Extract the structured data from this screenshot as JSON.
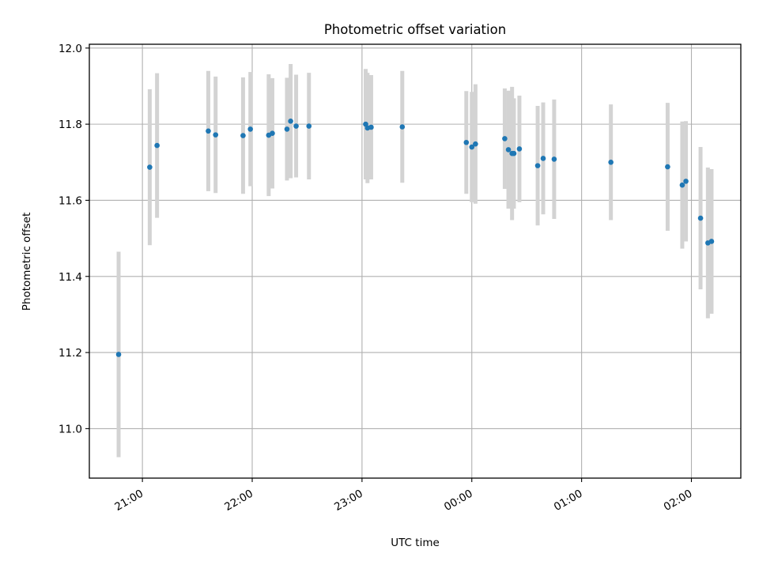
{
  "chart_data": {
    "type": "scatter",
    "title": "Photometric offset variation",
    "xlabel": "UTC time",
    "ylabel": "Photometric offset",
    "x_ticks": [
      "21:00",
      "22:00",
      "23:00",
      "00:00",
      "01:00",
      "02:00"
    ],
    "y_ticks": [
      "11.0",
      "11.2",
      "11.4",
      "11.6",
      "11.8",
      "12.0"
    ],
    "grid": true,
    "ylim": [
      10.87,
      12.01
    ],
    "xlim": [
      "20:31",
      "02:27"
    ],
    "colors": {
      "point": "#1f77b4",
      "errorbar": "#d3d3d3",
      "grid": "#b0b0b0"
    },
    "series": [
      {
        "points": [
          {
            "t": "20:47",
            "y": 11.195,
            "err": 0.27
          },
          {
            "t": "21:04",
            "y": 11.687,
            "err": 0.205
          },
          {
            "t": "21:08",
            "y": 11.744,
            "err": 0.19
          },
          {
            "t": "21:36",
            "y": 11.782,
            "err": 0.158
          },
          {
            "t": "21:40",
            "y": 11.772,
            "err": 0.153
          },
          {
            "t": "21:55",
            "y": 11.77,
            "err": 0.153
          },
          {
            "t": "21:59",
            "y": 11.787,
            "err": 0.15
          },
          {
            "t": "22:09",
            "y": 11.771,
            "err": 0.16
          },
          {
            "t": "22:11",
            "y": 11.776,
            "err": 0.145
          },
          {
            "t": "22:19",
            "y": 11.787,
            "err": 0.135
          },
          {
            "t": "22:21",
            "y": 11.808,
            "err": 0.15
          },
          {
            "t": "22:24",
            "y": 11.795,
            "err": 0.135
          },
          {
            "t": "22:31",
            "y": 11.795,
            "err": 0.14
          },
          {
            "t": "23:02",
            "y": 11.8,
            "err": 0.145
          },
          {
            "t": "23:03",
            "y": 11.79,
            "err": 0.145
          },
          {
            "t": "23:05",
            "y": 11.792,
            "err": 0.137
          },
          {
            "t": "23:22",
            "y": 11.793,
            "err": 0.147
          },
          {
            "t": "23:57",
            "y": 11.752,
            "err": 0.135
          },
          {
            "t": "00:00",
            "y": 11.74,
            "err": 0.145
          },
          {
            "t": "00:02",
            "y": 11.748,
            "err": 0.157
          },
          {
            "t": "00:18",
            "y": 11.762,
            "err": 0.132
          },
          {
            "t": "00:20",
            "y": 11.733,
            "err": 0.155
          },
          {
            "t": "00:22",
            "y": 11.723,
            "err": 0.175
          },
          {
            "t": "00:23",
            "y": 11.723,
            "err": 0.145
          },
          {
            "t": "00:26",
            "y": 11.735,
            "err": 0.14
          },
          {
            "t": "00:36",
            "y": 11.691,
            "err": 0.157
          },
          {
            "t": "00:39",
            "y": 11.71,
            "err": 0.147
          },
          {
            "t": "00:45",
            "y": 11.708,
            "err": 0.157
          },
          {
            "t": "01:16",
            "y": 11.7,
            "err": 0.152
          },
          {
            "t": "01:47",
            "y": 11.688,
            "err": 0.168
          },
          {
            "t": "01:55",
            "y": 11.64,
            "err": 0.167
          },
          {
            "t": "01:57",
            "y": 11.65,
            "err": 0.158
          },
          {
            "t": "02:05",
            "y": 11.553,
            "err": 0.187
          },
          {
            "t": "02:09",
            "y": 11.488,
            "err": 0.198
          },
          {
            "t": "02:11",
            "y": 11.492,
            "err": 0.19
          }
        ]
      }
    ]
  }
}
